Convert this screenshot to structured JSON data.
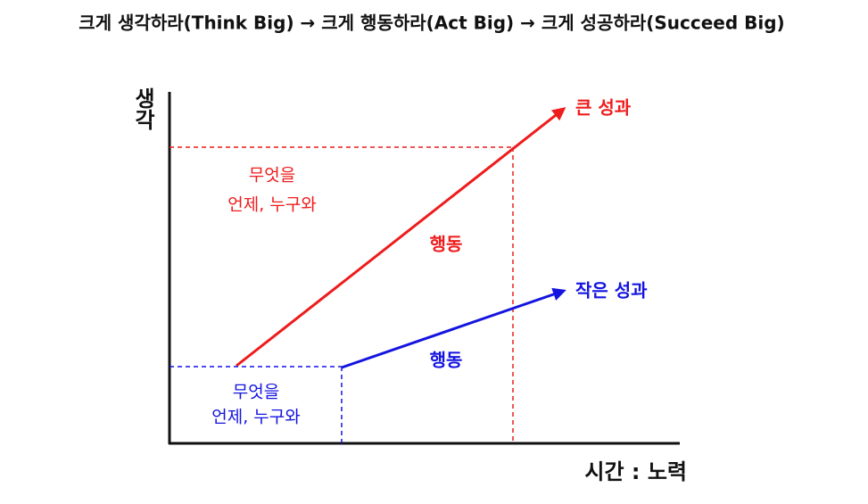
{
  "title": "크게 생각하라(Think Big) → 크게 행동하라(Act Big) → 크게 성공하라(Succeed Big)",
  "axes": {
    "y_label": "생각",
    "x_label": "시간 : 노력"
  },
  "big": {
    "result": "큰 성과",
    "action": "행동",
    "questions": [
      "무엇을",
      "언제, 누구와"
    ]
  },
  "small": {
    "result": "작은 성과",
    "action": "행동",
    "questions": [
      "무엇을",
      "언제, 누구와"
    ]
  }
}
